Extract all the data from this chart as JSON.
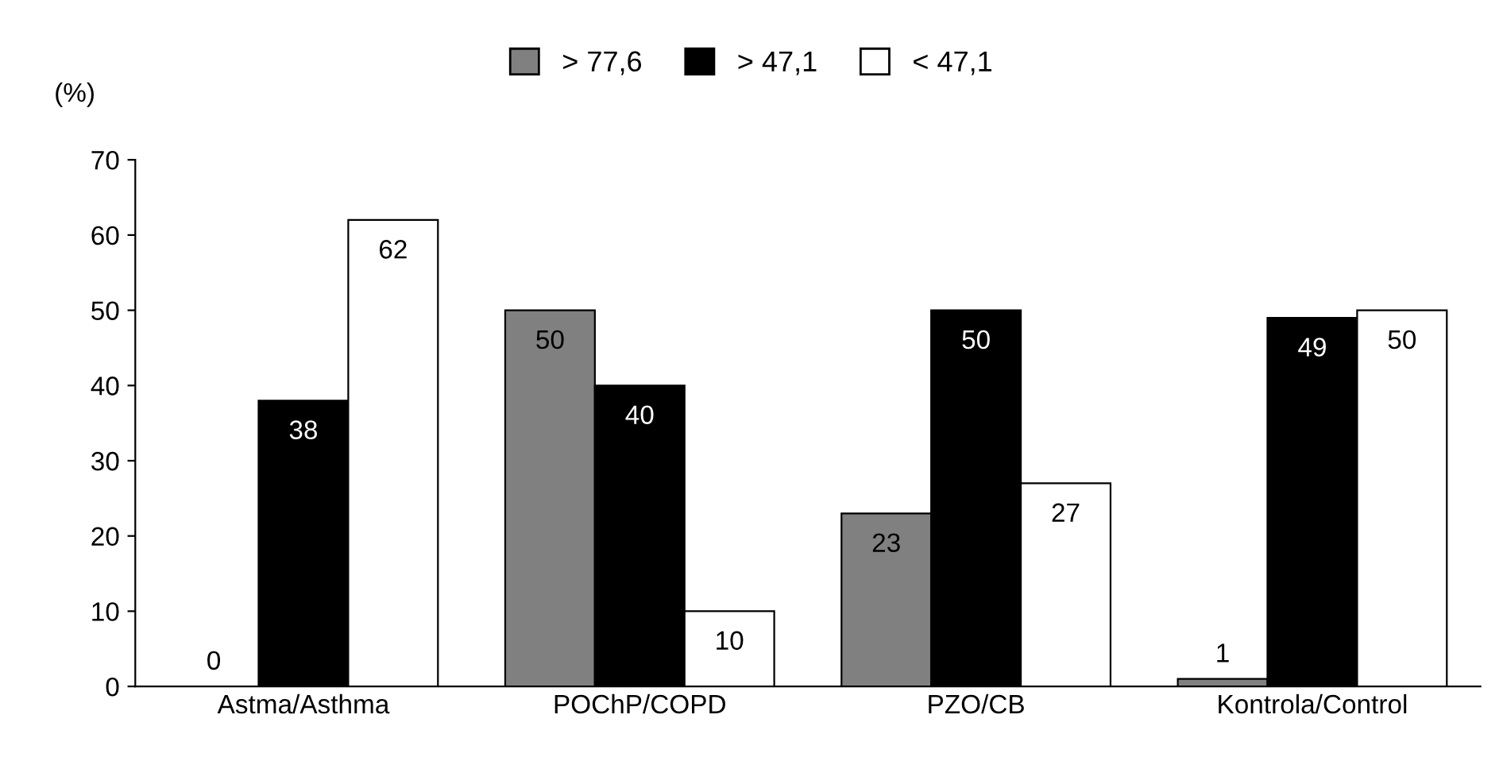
{
  "chart_data": {
    "type": "bar",
    "ylabel": "(%)",
    "categories": [
      "Astma/Asthma",
      "POChP/COPD",
      "PZO/CB",
      "Kontrola/Control"
    ],
    "series": [
      {
        "name": "> 77,6",
        "color": "#808080",
        "values": [
          0,
          50,
          23,
          1
        ]
      },
      {
        "name": "> 47,1",
        "color": "#000000",
        "values": [
          38,
          40,
          50,
          49
        ]
      },
      {
        "name": "< 47,1",
        "color": "#ffffff",
        "values": [
          62,
          10,
          27,
          50
        ]
      }
    ],
    "ylim": [
      0,
      70
    ],
    "yticks": [
      0,
      10,
      20,
      30,
      40,
      50,
      60,
      70
    ],
    "grid": false,
    "legend": "top",
    "data_labels": true
  }
}
